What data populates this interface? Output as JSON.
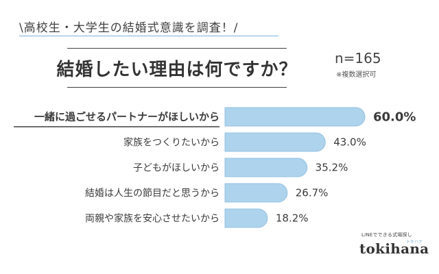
{
  "header": {
    "survey_title": "\\高校生・大学生の結婚式意識を調査！/",
    "question": "結婚したい理由は何ですか？",
    "sample_size": "n=165",
    "multiple_choice_note": "※複数選択可"
  },
  "brand": {
    "tagline": "LINEでできる式場探し",
    "kana": "トキハナ",
    "logo": "tokihana"
  },
  "colors": {
    "bar_fill": "#aed3ec",
    "bar_stroke": "#93c1e3",
    "accent_underline": "#7ab0dd"
  },
  "chart_data": {
    "type": "bar",
    "orientation": "horizontal",
    "categories": [
      "一緒に過ごせるパートナーがほしいから",
      "家族をつくりたいから",
      "子どもがほしいから",
      "結婚は人生の節目だと思うから",
      "両親や家族を安心させたいから"
    ],
    "values": [
      60.0,
      43.0,
      35.2,
      26.7,
      18.2
    ],
    "value_labels": [
      "60.0%",
      "43.0%",
      "35.2%",
      "26.7%",
      "18.2%"
    ],
    "unit": "%",
    "highlight_index": 0,
    "xlim": [
      0,
      60
    ],
    "grid": false,
    "legend": "none"
  }
}
